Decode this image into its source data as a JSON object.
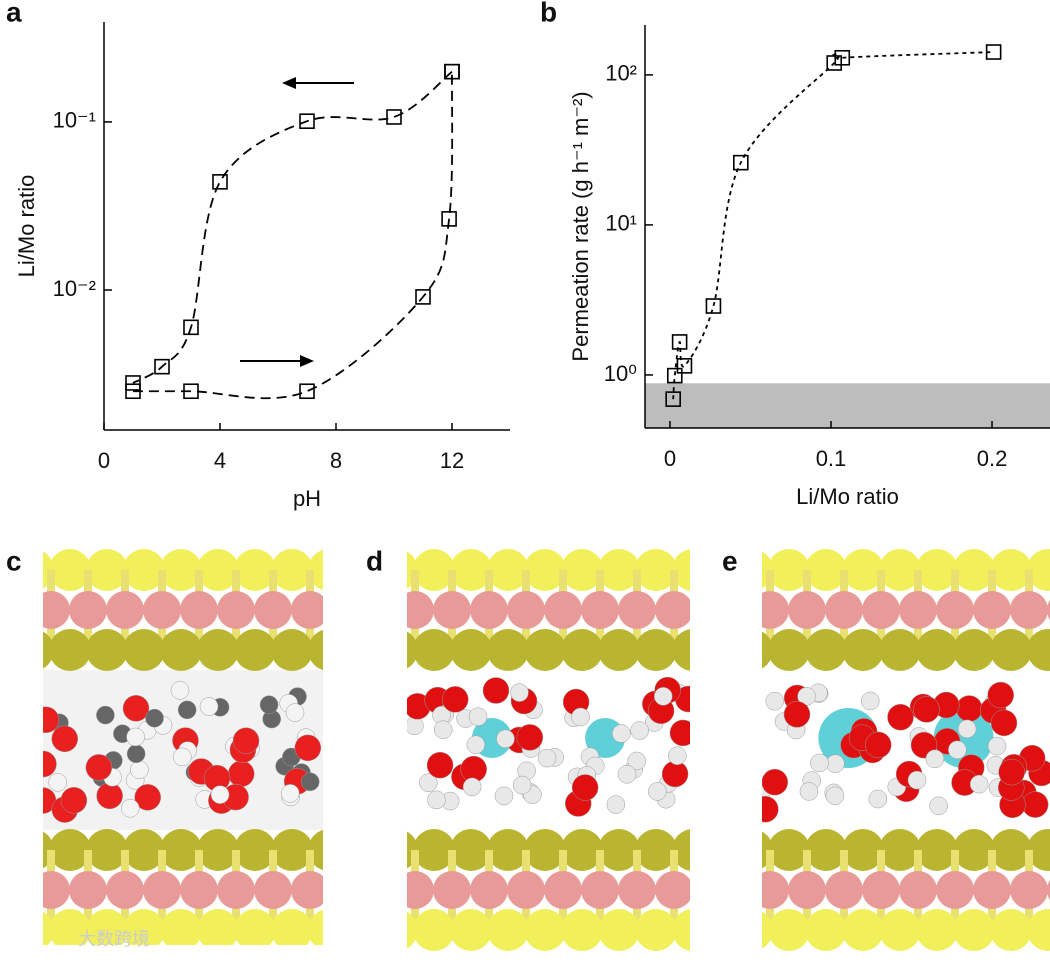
{
  "chart_data": [
    {
      "type": "scatter",
      "panel": "a",
      "xlabel": "pH",
      "ylabel": "Li/Mo ratio",
      "xlim": [
        0,
        14
      ],
      "xticks": [
        0,
        4,
        8,
        12
      ],
      "ylim": [
        0.00147,
        0.393
      ],
      "ylog": true,
      "yticks": [
        {
          "value": 0.01,
          "label": "10⁻²"
        },
        {
          "value": 0.1,
          "label": "10⁻¹"
        }
      ],
      "marker": "open-square",
      "series": [
        {
          "color": "#000000",
          "line_style": "dashed",
          "x": [
            12,
            10,
            7,
            4,
            3,
            2,
            1
          ],
          "values": [
            0.199,
            0.107,
            0.101,
            0.044,
            0.006,
            0.0035,
            0.0028
          ]
        },
        {
          "color": "#000000",
          "line_style": "dashed",
          "x": [
            1,
            3,
            7,
            11,
            11.9,
            12
          ],
          "values": [
            0.0025,
            0.0025,
            0.0025,
            0.0091,
            0.0265,
            0.199
          ]
        }
      ]
    },
    {
      "type": "scatter",
      "panel": "b",
      "xlabel": "Li/Mo ratio",
      "ylabel": "Permeation rate (g h⁻¹ m⁻²)",
      "xlim": [
        -0.0155,
        0.236
      ],
      "xticks": [
        0,
        0.1,
        0.2
      ],
      "ylim": [
        0.443,
        215
      ],
      "ylog": true,
      "yticks": [
        {
          "value": 1,
          "label": "10⁰"
        },
        {
          "value": 10,
          "label": "10¹"
        },
        {
          "value": 100,
          "label": "10²"
        }
      ],
      "marker": "open-square",
      "shade_below": 0.88,
      "shade_color": "#bdbdbd",
      "series": [
        {
          "color": "#000000",
          "line_style": "dotted",
          "x": [
            0.002,
            0.003,
            0.006,
            0.009,
            0.027,
            0.044,
            0.102,
            0.107,
            0.201
          ],
          "values": [
            0.69,
            0.99,
            1.66,
            1.15,
            2.88,
            26,
            120,
            130,
            142
          ]
        }
      ]
    }
  ],
  "panels": [
    "c",
    "d",
    "e"
  ],
  "watermark": "大数跨境"
}
